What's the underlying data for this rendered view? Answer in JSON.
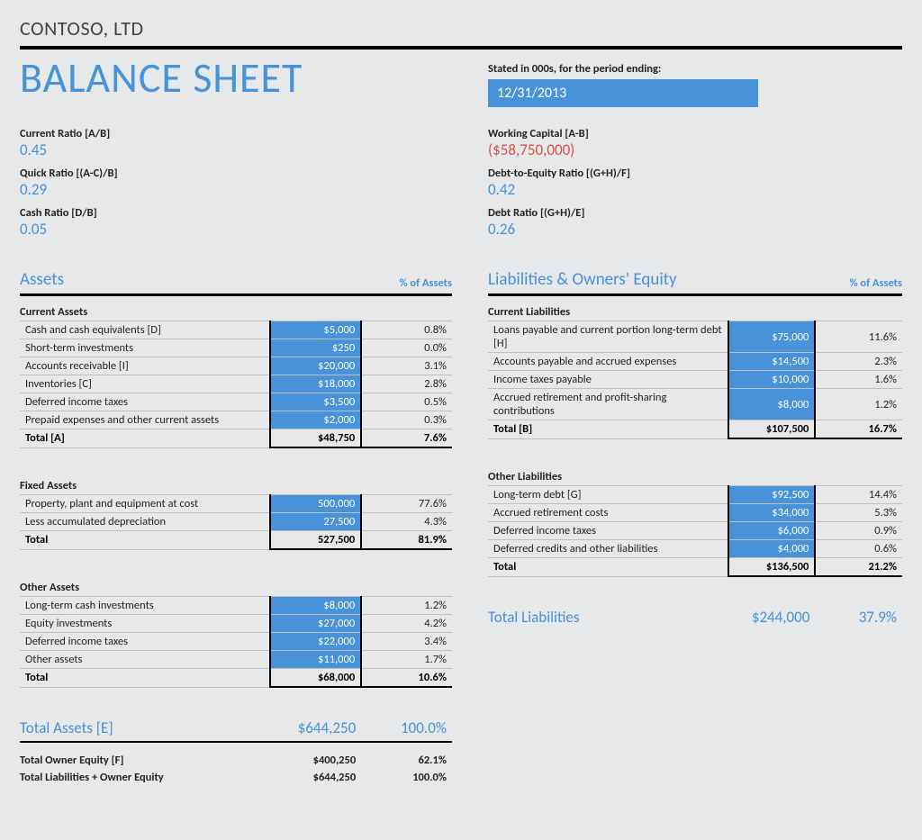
{
  "company": "CONTOSO, LTD",
  "title": "BALANCE SHEET",
  "period_label": "Stated in 000s, for the period ending:",
  "period_value": "12/31/2013",
  "colors": {
    "accent": "#4792d8",
    "bg": "#e7e8ea",
    "negative": "#d85047",
    "rule": "#000000",
    "grid": "#bfbfbf"
  },
  "ratios_left": [
    {
      "label": "Current Ratio   [A/B]",
      "value": "0.45"
    },
    {
      "label": "Quick Ratio   [(A-C)/B]",
      "value": "0.29"
    },
    {
      "label": "Cash Ratio   [D/B]",
      "value": "0.05"
    }
  ],
  "ratios_right": [
    {
      "label": "Working Capital   [A-B]",
      "value": "($58,750,000)",
      "neg": true
    },
    {
      "label": "Debt-to-Equity Ratio   [(G+H)/F]",
      "value": "0.42"
    },
    {
      "label": "Debt Ratio   [(G+H)/E]",
      "value": "0.26"
    }
  ],
  "assets_heading": "Assets",
  "pct_heading": "% of Assets",
  "liab_heading": "Liabilities & Owners' Equity",
  "assets": {
    "current": {
      "title": "Current Assets",
      "rows": [
        {
          "label": "Cash and cash equivalents   [D]",
          "value": "$5,000",
          "pct": "0.8%"
        },
        {
          "label": "Short-term investments",
          "value": "$250",
          "pct": "0.0%"
        },
        {
          "label": "Accounts receivable   [I]",
          "value": "$20,000",
          "pct": "3.1%"
        },
        {
          "label": "Inventories   [C]",
          "value": "$18,000",
          "pct": "2.8%"
        },
        {
          "label": "Deferred income taxes",
          "value": "$3,500",
          "pct": "0.5%"
        },
        {
          "label": "Prepaid expenses and other current assets",
          "value": "$2,000",
          "pct": "0.3%"
        }
      ],
      "total": {
        "label": "Total   [A]",
        "value": "$48,750",
        "pct": "7.6%"
      }
    },
    "fixed": {
      "title": "Fixed Assets",
      "rows": [
        {
          "label": "Property, plant and equipment at cost",
          "value": "500,000",
          "pct": "77.6%"
        },
        {
          "label": "Less accumulated depreciation",
          "value": "27,500",
          "pct": "4.3%"
        }
      ],
      "total": {
        "label": "Total",
        "value": "527,500",
        "pct": "81.9%"
      }
    },
    "other": {
      "title": "Other Assets",
      "rows": [
        {
          "label": "Long-term cash investments",
          "value": "$8,000",
          "pct": "1.2%"
        },
        {
          "label": "Equity investments",
          "value": "$27,000",
          "pct": "4.2%"
        },
        {
          "label": "Deferred income taxes",
          "value": "$22,000",
          "pct": "3.4%"
        },
        {
          "label": "Other assets",
          "value": "$11,000",
          "pct": "1.7%"
        }
      ],
      "total": {
        "label": "Total",
        "value": "$68,000",
        "pct": "10.6%"
      }
    }
  },
  "liabilities": {
    "current": {
      "title": "Current Liabilities",
      "rows": [
        {
          "label": "Loans payable and current portion long-term debt   [H]",
          "value": "$75,000",
          "pct": "11.6%"
        },
        {
          "label": "Accounts payable and accrued expenses",
          "value": "$14,500",
          "pct": "2.3%"
        },
        {
          "label": "Income taxes payable",
          "value": "$10,000",
          "pct": "1.6%"
        },
        {
          "label": "Accrued retirement and profit-sharing contributions",
          "value": "$8,000",
          "pct": "1.2%"
        }
      ],
      "total": {
        "label": "Total   [B]",
        "value": "$107,500",
        "pct": "16.7%"
      }
    },
    "other": {
      "title": "Other Liabilities",
      "rows": [
        {
          "label": "Long-term debt   [G]",
          "value": "$92,500",
          "pct": "14.4%"
        },
        {
          "label": "Accrued retirement costs",
          "value": "$34,000",
          "pct": "5.3%"
        },
        {
          "label": "Deferred income taxes",
          "value": "$6,000",
          "pct": "0.9%"
        },
        {
          "label": "Deferred credits and other liabilities",
          "value": "$4,000",
          "pct": "0.6%"
        }
      ],
      "total": {
        "label": "Total",
        "value": "$136,500",
        "pct": "21.2%"
      }
    }
  },
  "total_assets": {
    "label": "Total Assets   [E]",
    "value": "$644,250",
    "pct": "100.0%"
  },
  "total_liabilities": {
    "label": "Total Liabilities",
    "value": "$244,000",
    "pct": "37.9%"
  },
  "summary": [
    {
      "label": "Total Owner Equity   [F]",
      "value": "$400,250",
      "pct": "62.1%"
    },
    {
      "label": "Total Liabilities + Owner Equity",
      "value": "$644,250",
      "pct": "100.0%"
    }
  ]
}
